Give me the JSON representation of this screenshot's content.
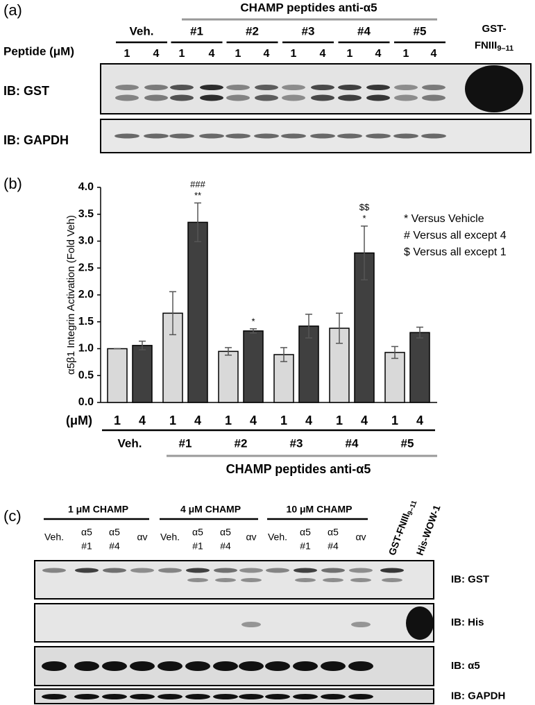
{
  "panel_a": {
    "label": "(a)",
    "header": "CHAMP peptides anti-α5",
    "groups": [
      "Veh.",
      "#1",
      "#2",
      "#3",
      "#4",
      "#5"
    ],
    "row_label": "Peptide (μM)",
    "doses": [
      "1",
      "4"
    ],
    "control": {
      "line1": "GST-",
      "main": "FNIII",
      "sub": "9–11"
    },
    "blots": [
      "IB: GST",
      "IB: GAPDH"
    ]
  },
  "chart_data": {
    "type": "bar",
    "label": "(b)",
    "y_label": "α5β1 Integrin Activation (Fold Veh)",
    "x_label": "(μM)",
    "categories": [
      "Veh.",
      "#1",
      "#2",
      "#3",
      "#4",
      "#5"
    ],
    "group_label": "CHAMP peptides anti-α5",
    "series": [
      {
        "name": "1",
        "color": "#d9d9d9",
        "values": [
          1.0,
          1.66,
          0.95,
          0.89,
          1.38,
          0.93
        ],
        "errors": [
          0,
          0.4,
          0.07,
          0.13,
          0.28,
          0.11
        ]
      },
      {
        "name": "4",
        "color": "#404040",
        "values": [
          1.06,
          3.35,
          1.33,
          1.42,
          2.78,
          1.3
        ],
        "errors": [
          0.08,
          0.36,
          0.04,
          0.22,
          0.5,
          0.1
        ],
        "annotations": [
          null,
          [
            "###",
            "**"
          ],
          [
            "*"
          ],
          null,
          [
            "$$",
            "*"
          ],
          null
        ]
      }
    ],
    "ylim": [
      0,
      4
    ],
    "yticks": [
      {
        "value": 0,
        "label": "0.0"
      },
      0.5,
      {
        "value": 1,
        "label": "1.0"
      },
      1.5,
      {
        "value": 2,
        "label": "2.0"
      },
      2.5,
      {
        "value": 3,
        "label": "3.0"
      },
      3.5,
      {
        "value": 4,
        "label": "4.0"
      }
    ],
    "legend": [
      "* Versus Vehicle",
      "# Versus all except 4",
      "$ Versus all except 1"
    ]
  },
  "panel_c": {
    "label": "(c)",
    "groups": [
      "1 μM CHAMP",
      "4 μM CHAMP",
      "10 μM CHAMP"
    ],
    "lanes": [
      [
        "Veh."
      ],
      [
        "α5",
        "#1"
      ],
      [
        "α5",
        "#4"
      ],
      [
        "αv"
      ]
    ],
    "controls": [
      {
        "main": "GST-FNIII",
        "sub": "9–11"
      },
      {
        "main": "His-WOW-1"
      }
    ],
    "blots": [
      "IB: GST",
      "IB: His",
      "IB: α5",
      "IB: GAPDH"
    ]
  }
}
